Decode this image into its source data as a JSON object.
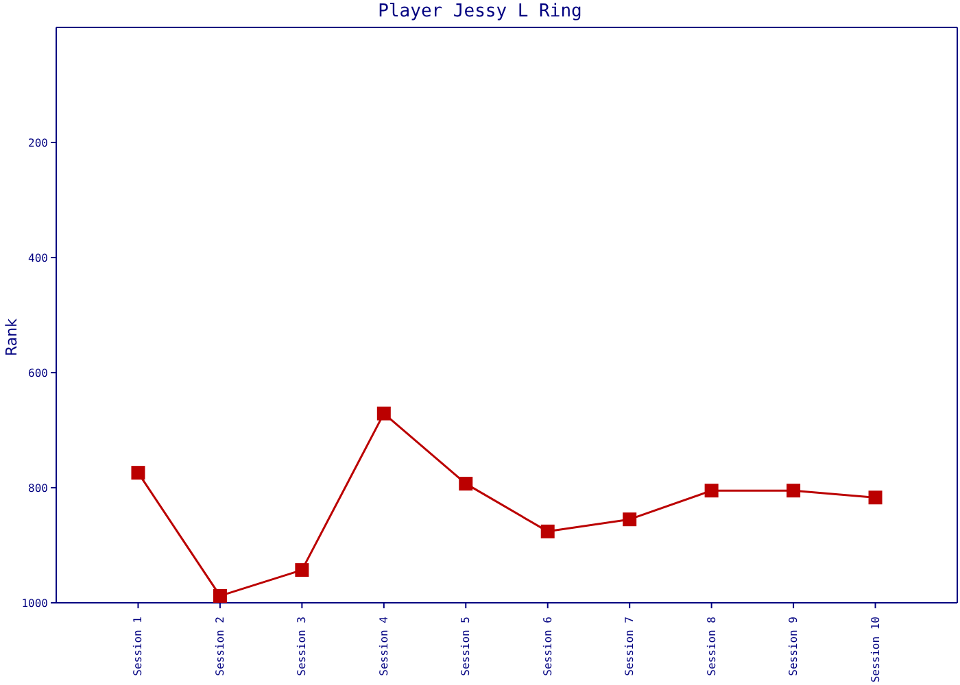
{
  "chart_data": {
    "type": "line",
    "title": "Player Jessy L Ring",
    "ylabel": "Rank",
    "categories": [
      "Session 1",
      "Session 2",
      "Session 3",
      "Session 4",
      "Session 5",
      "Session 6",
      "Session 7",
      "Session 8",
      "Session 9",
      "Session 10"
    ],
    "series": [
      {
        "color": "#bb0000",
        "values": [
          774,
          988,
          943,
          671,
          793,
          876,
          855,
          805,
          805,
          817
        ]
      }
    ],
    "ylim": [
      1000,
      0
    ],
    "yticks": [
      200,
      400,
      600,
      800,
      1000
    ],
    "grid": false,
    "legend": false,
    "marker": "square",
    "line_style": "solid"
  }
}
